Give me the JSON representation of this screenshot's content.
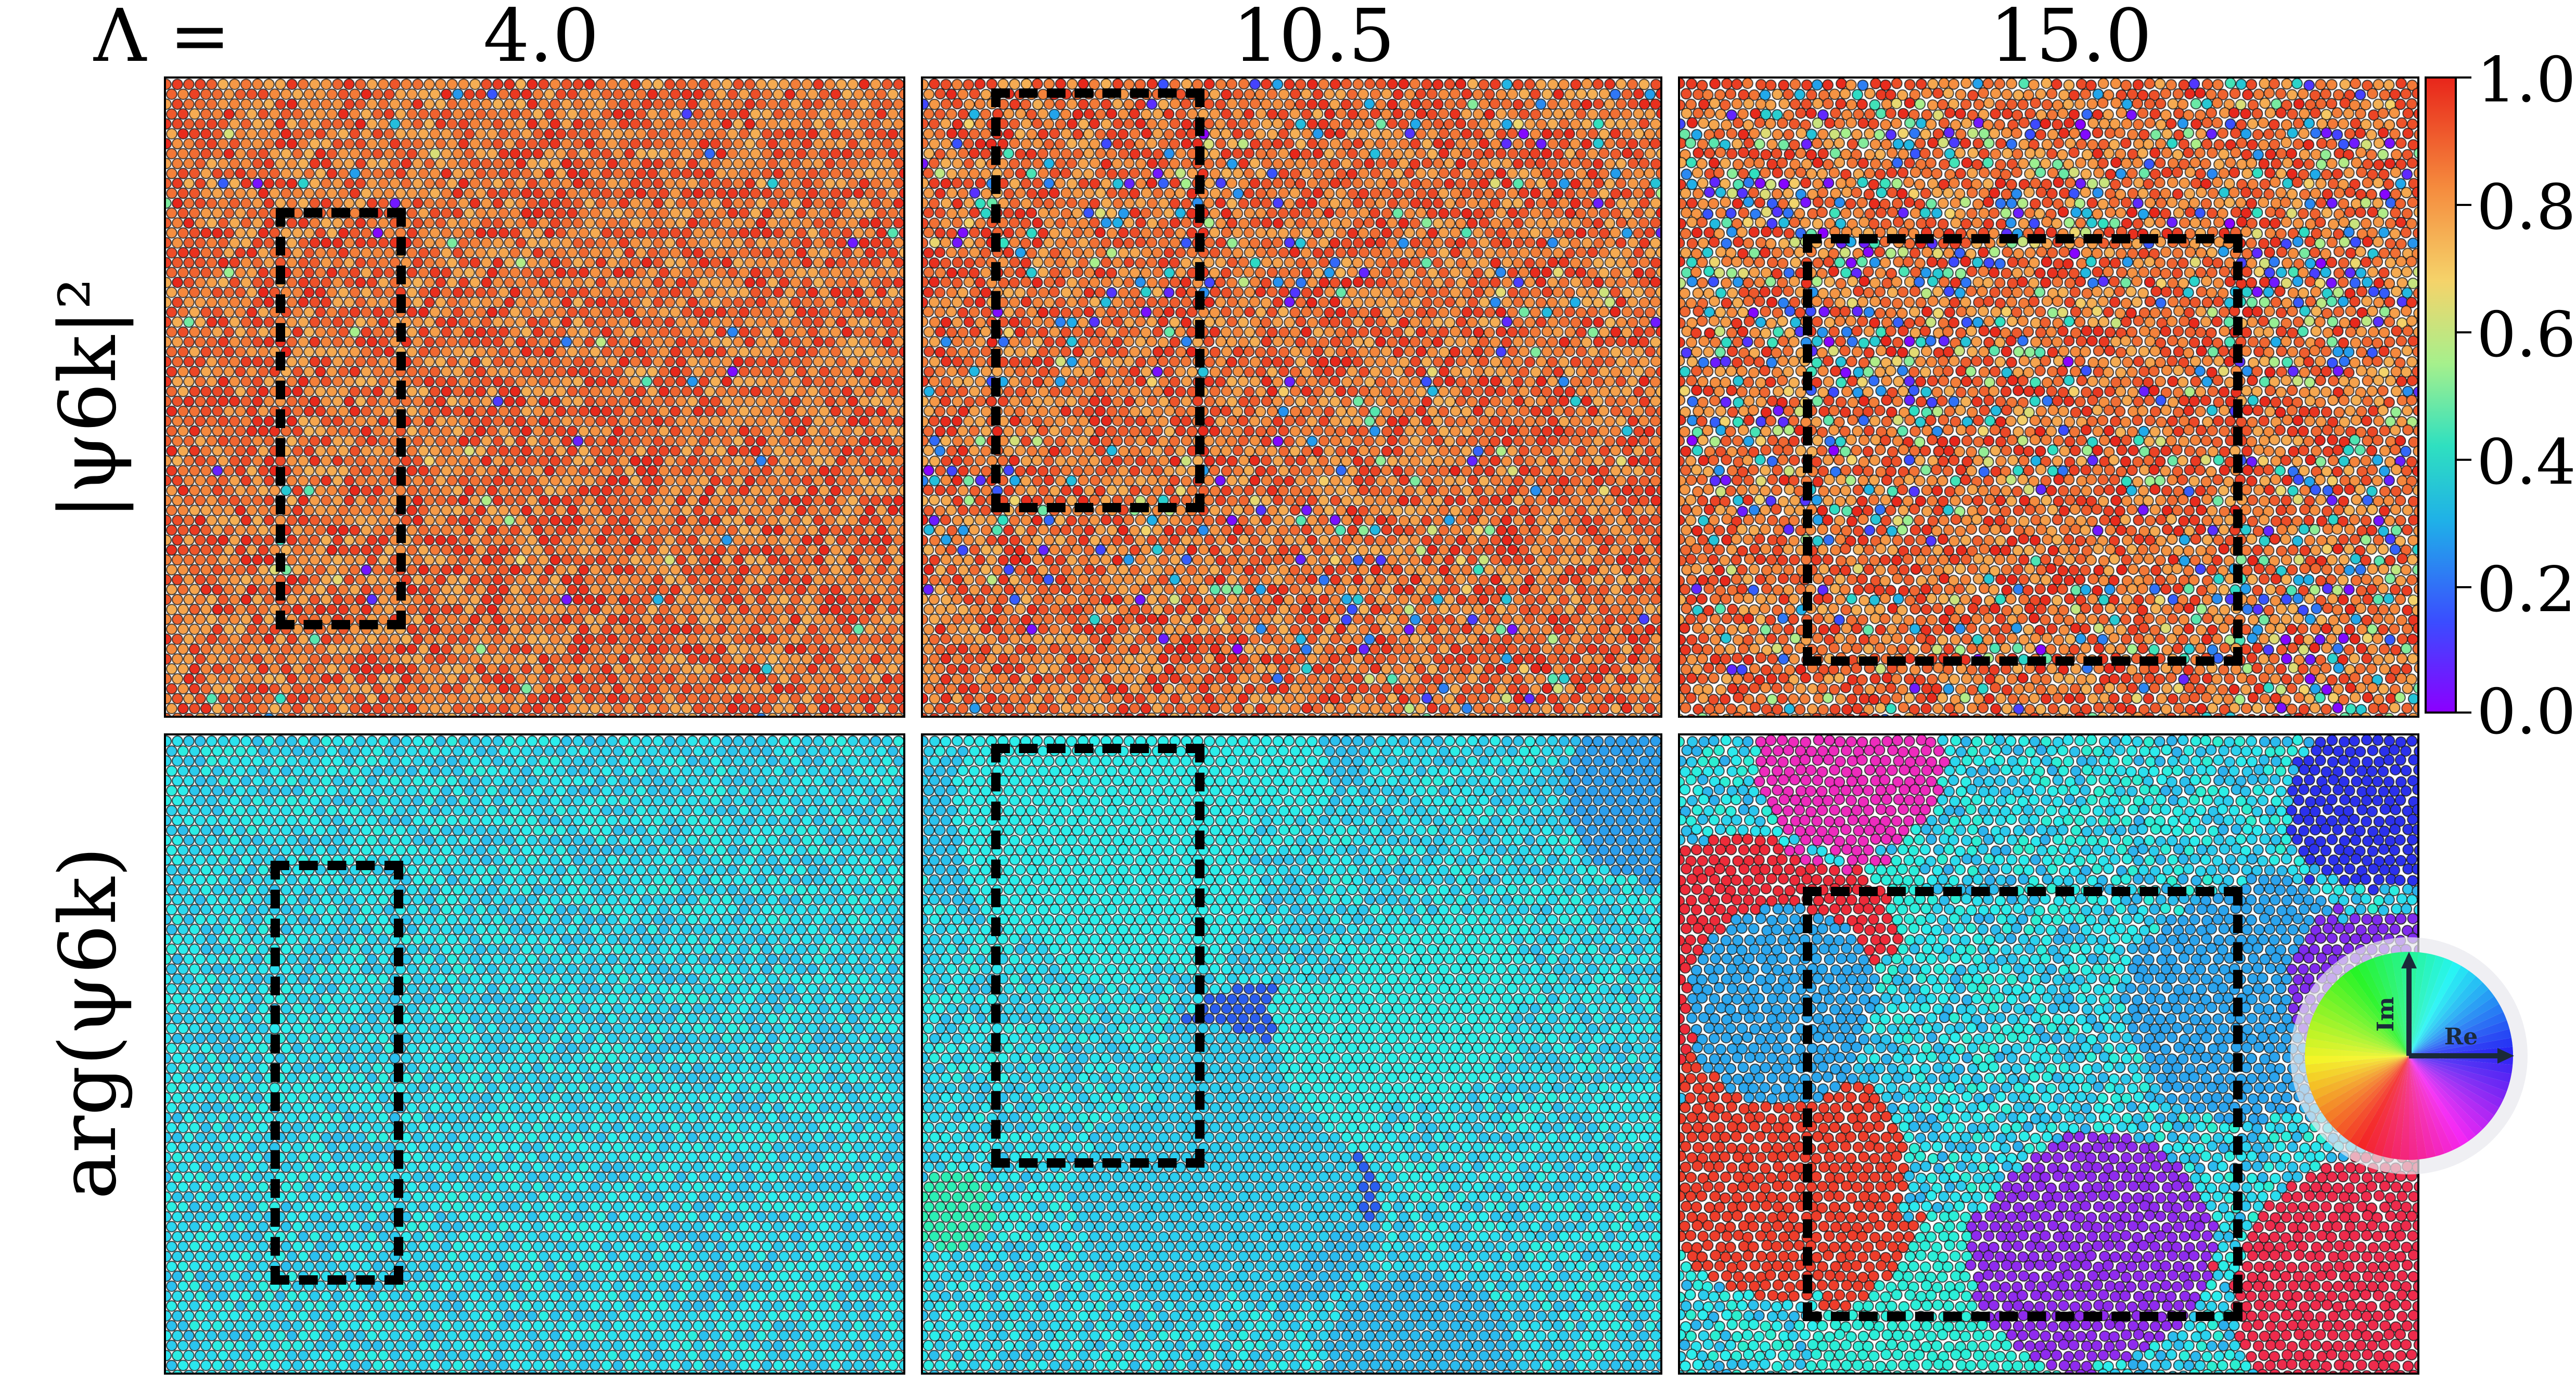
{
  "header": {
    "lambda_label": "Λ =",
    "columns": [
      "4.0",
      "10.5",
      "15.0"
    ]
  },
  "rows": {
    "top_label": "|ψ6k|²",
    "bottom_label": "arg(ψ6k)"
  },
  "colorbar": {
    "ticks": [
      "1.0",
      "0.8",
      "0.6",
      "0.4",
      "0.2",
      "0.0"
    ]
  },
  "color_wheel": {
    "im_label": "Im",
    "re_label": "Re"
  },
  "colors": {
    "high_order": "#d94a35",
    "defect_low": "#4a3cff",
    "phase_base": "#3fd0d6"
  }
}
